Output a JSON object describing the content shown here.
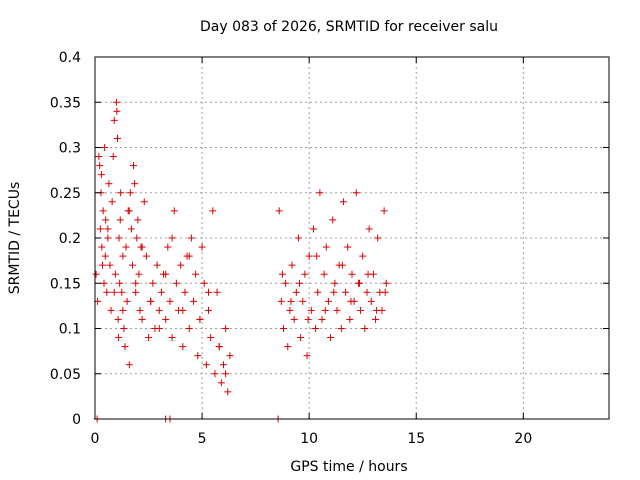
{
  "chart_data": {
    "type": "scatter",
    "title": "Day 083 of 2026, SRMTID for receiver salu",
    "xlabel": "GPS time / hours",
    "ylabel": "SRMTID / TECUs",
    "xlim": [
      0,
      24
    ],
    "ylim": [
      0,
      0.4
    ],
    "xticks": [
      0,
      5,
      10,
      15,
      20
    ],
    "yticks": [
      0,
      0.05,
      0.1,
      0.15,
      0.2,
      0.25,
      0.3,
      0.35,
      0.4
    ],
    "xtick_labels": [
      "0",
      "5",
      "10",
      "15",
      "20"
    ],
    "ytick_labels": [
      "0",
      "0.05",
      "0.1",
      "0.15",
      "0.2",
      "0.25",
      "0.3",
      "0.35",
      "0.4"
    ],
    "grid": true,
    "marker": "plus",
    "color": "#dd0000",
    "series": [
      {
        "x": [
          0.05,
          0.12,
          0.18,
          0.22,
          0.25,
          0.28,
          0.32,
          0.35,
          0.38,
          0.42,
          0.45,
          0.48,
          0.5,
          0.55,
          0.6,
          0.65,
          0.7,
          0.75,
          0.8,
          0.85,
          0.9,
          0.95,
          1.0,
          1.02,
          1.05,
          1.08,
          1.1,
          1.12,
          1.15,
          1.18,
          1.2,
          1.25,
          1.3,
          1.35,
          1.4,
          1.45,
          1.5,
          1.55,
          1.6,
          1.65,
          1.7,
          1.75,
          1.8,
          1.85,
          1.9,
          1.95,
          2.0,
          2.05,
          2.1,
          2.15,
          2.2,
          2.3,
          2.4,
          2.5,
          2.6,
          2.7,
          2.8,
          2.9,
          3.0,
          3.1,
          3.2,
          3.3,
          3.4,
          3.5,
          3.6,
          3.7,
          3.8,
          3.9,
          4.0,
          4.1,
          4.2,
          4.3,
          4.4,
          4.5,
          4.6,
          4.7,
          4.8,
          4.9,
          5.0,
          5.1,
          5.2,
          5.3,
          5.4,
          5.5,
          5.6,
          5.7,
          5.8,
          5.9,
          6.0,
          6.1,
          6.2,
          6.3,
          0.3,
          0.6,
          0.9,
          1.3,
          1.6,
          1.9,
          2.2,
          2.6,
          3.0,
          3.3,
          3.6,
          4.1,
          4.4,
          4.9,
          5.3,
          5.8,
          6.1
        ],
        "y": [
          0.16,
          0.13,
          0.29,
          0.28,
          0.21,
          0.25,
          0.19,
          0.17,
          0.23,
          0.15,
          0.3,
          0.18,
          0.22,
          0.14,
          0.2,
          0.26,
          0.17,
          0.12,
          0.24,
          0.29,
          0.33,
          0.16,
          0.35,
          0.34,
          0.31,
          0.11,
          0.09,
          0.2,
          0.15,
          0.22,
          0.25,
          0.14,
          0.18,
          0.1,
          0.08,
          0.19,
          0.13,
          0.23,
          0.06,
          0.25,
          0.21,
          0.17,
          0.28,
          0.26,
          0.14,
          0.2,
          0.22,
          0.16,
          0.12,
          0.19,
          0.11,
          0.24,
          0.18,
          0.09,
          0.13,
          0.15,
          0.1,
          0.17,
          0.12,
          0.14,
          0.16,
          0.11,
          0.19,
          0.13,
          0.09,
          0.23,
          0.15,
          0.12,
          0.17,
          0.08,
          0.14,
          0.18,
          0.1,
          0.2,
          0.13,
          0.16,
          0.07,
          0.11,
          0.19,
          0.15,
          0.06,
          0.12,
          0.09,
          0.23,
          0.05,
          0.14,
          0.08,
          0.04,
          0.06,
          0.1,
          0.03,
          0.07,
          0.27,
          0.21,
          0.14,
          0.12,
          0.23,
          0.15,
          0.19,
          0.13,
          0.1,
          0.16,
          0.2,
          0.12,
          0.18,
          0.11,
          0.14,
          0.08,
          0.05
        ]
      },
      {
        "x": [
          8.6,
          8.7,
          8.8,
          8.9,
          9.0,
          9.1,
          9.2,
          9.3,
          9.4,
          9.5,
          9.6,
          9.7,
          9.8,
          9.9,
          10.0,
          10.1,
          10.2,
          10.3,
          10.4,
          10.5,
          10.6,
          10.7,
          10.8,
          10.9,
          11.0,
          11.1,
          11.2,
          11.3,
          11.4,
          11.5,
          11.6,
          11.7,
          11.8,
          11.9,
          12.0,
          12.1,
          12.2,
          12.3,
          12.4,
          12.5,
          12.6,
          12.7,
          12.8,
          12.9,
          13.0,
          13.1,
          13.2,
          13.3,
          13.4,
          13.5,
          13.6,
          8.75,
          9.15,
          9.55,
          9.95,
          10.35,
          10.75,
          11.15,
          11.55,
          11.95,
          12.35,
          12.75,
          13.15,
          13.55
        ],
        "y": [
          0.23,
          0.13,
          0.1,
          0.15,
          0.08,
          0.12,
          0.17,
          0.11,
          0.14,
          0.2,
          0.09,
          0.13,
          0.16,
          0.07,
          0.18,
          0.12,
          0.21,
          0.1,
          0.14,
          0.25,
          0.11,
          0.16,
          0.19,
          0.13,
          0.09,
          0.22,
          0.15,
          0.12,
          0.17,
          0.1,
          0.24,
          0.14,
          0.19,
          0.11,
          0.16,
          0.13,
          0.25,
          0.15,
          0.12,
          0.18,
          0.1,
          0.14,
          0.21,
          0.13,
          0.16,
          0.11,
          0.2,
          0.14,
          0.12,
          0.23,
          0.15,
          0.16,
          0.13,
          0.15,
          0.11,
          0.18,
          0.12,
          0.14,
          0.17,
          0.13,
          0.15,
          0.16,
          0.12,
          0.14
        ]
      },
      {
        "x": [
          0.1,
          3.3,
          3.5,
          8.55
        ],
        "y": [
          0,
          0,
          0,
          0
        ]
      }
    ]
  }
}
